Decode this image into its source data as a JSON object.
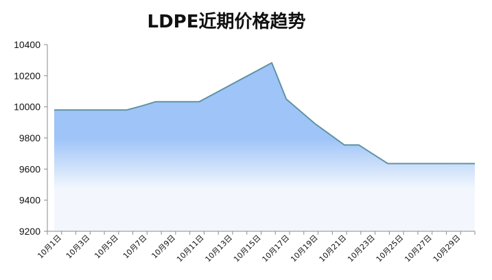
{
  "chart_data": {
    "type": "area",
    "title": "LDPE近期价格趋势",
    "xlabel": "",
    "ylabel": "",
    "ylim": [
      9200,
      10400
    ],
    "yticks": [
      9200,
      9400,
      9600,
      9800,
      10000,
      10200,
      10400
    ],
    "x": [
      1,
      2,
      3,
      4,
      5,
      6,
      7,
      8,
      9,
      10,
      11,
      12,
      13,
      14,
      15,
      16,
      17,
      18,
      19,
      20,
      21,
      22,
      23,
      24,
      25,
      26,
      27,
      28,
      29,
      30
    ],
    "xtick_labels": [
      "10月1日",
      "10月3日",
      "10月5日",
      "10月7日",
      "10月9日",
      "10月11日",
      "10月13日",
      "10月15日",
      "10月17日",
      "10月19日",
      "10月21日",
      "10月23日",
      "10月25日",
      "10月27日",
      "10月29日"
    ],
    "series": [
      {
        "values": [
          9980,
          9980,
          9980,
          9980,
          9980,
          9980,
          10005,
          10033,
          10033,
          10033,
          10033,
          10083,
          10133,
          10183,
          10233,
          10283,
          10050,
          9970,
          9890,
          9823,
          9755,
          9755,
          9695,
          9635,
          9635,
          9635,
          9635,
          9635,
          9635,
          9635
        ]
      }
    ],
    "grid": false,
    "legend": "none",
    "colors": {
      "line": "#5f93a3",
      "fill_top": "#9fc4f8",
      "fill_bottom": "#f3f7fd",
      "axis": "#8a8a8a"
    }
  }
}
